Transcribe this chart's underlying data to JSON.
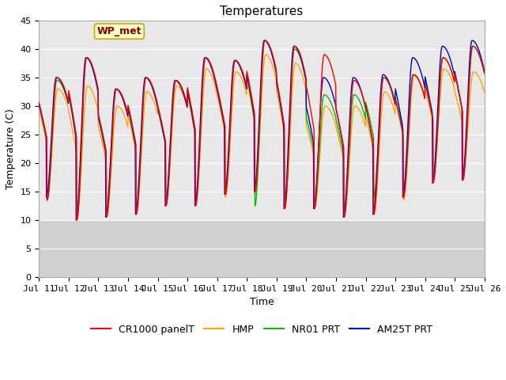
{
  "title": "Temperatures",
  "xlabel": "Time",
  "ylabel": "Temperature (C)",
  "ylim": [
    0,
    45
  ],
  "yticks": [
    0,
    5,
    10,
    15,
    20,
    25,
    30,
    35,
    40,
    45
  ],
  "xlim": [
    0,
    15
  ],
  "xtick_labels": [
    "Jul 11",
    "Jul 12",
    "Jul 13",
    "Jul 14",
    "Jul 15",
    "Jul 16",
    "Jul 17",
    "Jul 18",
    "Jul 19",
    "Jul 20",
    "Jul 21",
    "Jul 22",
    "Jul 23",
    "Jul 24",
    "Jul 25",
    "Jul 26"
  ],
  "series_colors": [
    "#ff0000",
    "#ffa500",
    "#00bb00",
    "#0000cc"
  ],
  "series_names": [
    "CR1000 panelT",
    "HMP",
    "NR01 PRT",
    "AM25T PRT"
  ],
  "annotation_text": "WP_met",
  "bg_color": "#ffffff",
  "plot_bg_color": "#e8e8e8",
  "plot_bg_color2": "#d0d0d0",
  "title_fontsize": 11,
  "label_fontsize": 9,
  "tick_fontsize": 8,
  "legend_fontsize": 9,
  "day_peaks_cr": [
    35.0,
    38.5,
    33.0,
    35.0,
    34.5,
    38.5,
    38.0,
    41.5,
    40.5,
    39.0,
    34.5,
    35.0,
    35.5,
    38.5,
    40.5,
    41.5
  ],
  "day_troughs_cr": [
    13.5,
    10.0,
    10.5,
    11.0,
    12.5,
    12.5,
    14.5,
    15.0,
    12.0,
    12.0,
    10.5,
    11.0,
    14.0,
    16.5,
    17.0,
    17.0
  ],
  "day_peaks_hmp": [
    33.0,
    33.5,
    30.0,
    32.5,
    33.5,
    36.5,
    36.0,
    39.0,
    37.5,
    30.0,
    30.0,
    32.5,
    35.5,
    36.5,
    36.0,
    36.5
  ],
  "day_troughs_hmp": [
    13.5,
    10.0,
    10.5,
    11.0,
    12.5,
    12.5,
    14.0,
    14.5,
    12.0,
    12.0,
    10.5,
    11.0,
    13.5,
    17.5,
    17.5,
    18.5
  ],
  "day_peaks_nr": [
    34.5,
    38.5,
    33.0,
    35.0,
    34.5,
    38.5,
    38.0,
    41.5,
    40.0,
    32.0,
    32.0,
    35.0,
    35.5,
    38.5,
    40.5,
    41.5
  ],
  "day_troughs_nr": [
    13.5,
    10.0,
    11.0,
    11.0,
    12.5,
    12.5,
    14.5,
    12.5,
    12.0,
    12.0,
    10.5,
    14.0,
    15.5,
    17.0,
    17.0,
    17.0
  ],
  "day_peaks_am": [
    35.0,
    38.5,
    33.0,
    35.0,
    34.5,
    38.5,
    38.0,
    41.5,
    40.5,
    35.0,
    35.0,
    35.5,
    38.5,
    40.5,
    41.5,
    33.0
  ],
  "day_troughs_am": [
    14.0,
    10.0,
    10.5,
    11.0,
    12.5,
    12.5,
    14.5,
    15.0,
    12.0,
    12.0,
    10.5,
    11.0,
    14.0,
    16.5,
    17.0,
    18.5
  ]
}
